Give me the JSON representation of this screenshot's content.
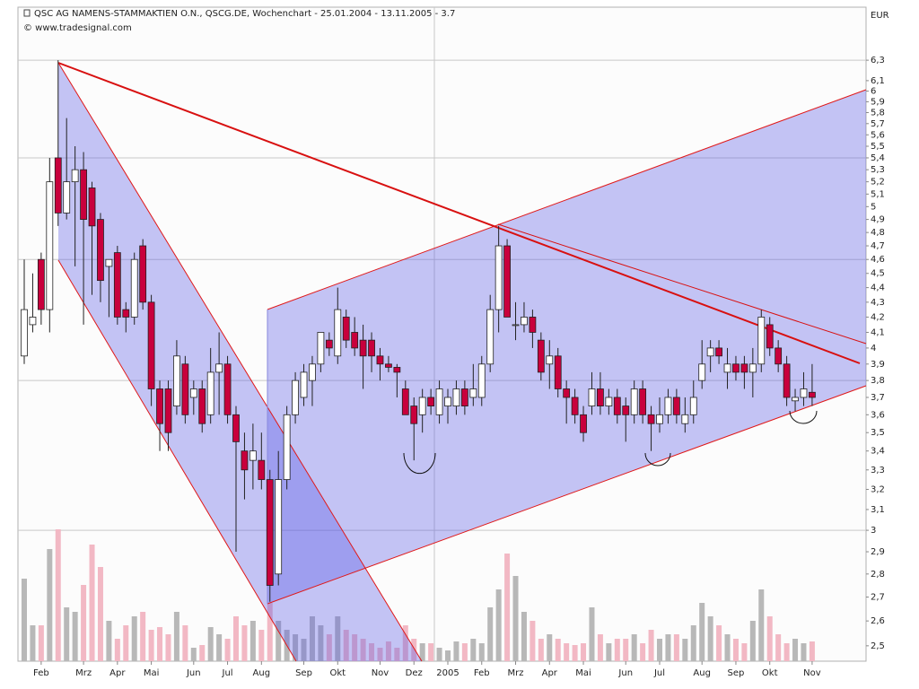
{
  "chart_data": {
    "type": "candlestick",
    "title": "QSC AG NAMENS-STAMMAKTIEN O.N., QSCG.DE, Wochenchart - 25.01.2004 - 13.11.2005 - 3.7",
    "subtitle": "© www.tradesignal.com",
    "y_label": "EUR",
    "log_scale": true,
    "ylim": [
      2.44,
      6.85
    ],
    "grid_step": 8,
    "up_color": "#ffffff",
    "down_color": "#c8003c",
    "volume_up_color": "#b8b8b8",
    "volume_down_color": "#f2b8c4",
    "yticks": [
      {
        "value": 6.3,
        "label": "6,3"
      },
      {
        "value": 6.1,
        "label": "6,1"
      },
      6,
      {
        "value": 5.9,
        "label": "5,9"
      },
      {
        "value": 5.8,
        "label": "5,8"
      },
      {
        "value": 5.7,
        "label": "5,7"
      },
      {
        "value": 5.6,
        "label": "5,6"
      },
      {
        "value": 5.5,
        "label": "5,5"
      },
      {
        "value": 5.4,
        "label": "5,4"
      },
      {
        "value": 5.3,
        "label": "5,3"
      },
      {
        "value": 5.2,
        "label": "5,2"
      },
      {
        "value": 5.1,
        "label": "5,1"
      },
      5,
      {
        "value": 4.9,
        "label": "4,9"
      },
      {
        "value": 4.8,
        "label": "4,8"
      },
      {
        "value": 4.7,
        "label": "4,7"
      },
      {
        "value": 4.6,
        "label": "4,6"
      },
      {
        "value": 4.5,
        "label": "4,5"
      },
      {
        "value": 4.4,
        "label": "4,4"
      },
      {
        "value": 4.3,
        "label": "4,3"
      },
      {
        "value": 4.2,
        "label": "4,2"
      },
      {
        "value": 4.1,
        "label": "4,1"
      },
      4,
      {
        "value": 3.9,
        "label": "3,9"
      },
      {
        "value": 3.8,
        "label": "3,8"
      },
      {
        "value": 3.7,
        "label": "3,7"
      },
      {
        "value": 3.6,
        "label": "3,6"
      },
      {
        "value": 3.5,
        "label": "3,5"
      },
      {
        "value": 3.4,
        "label": "3,4"
      },
      {
        "value": 3.3,
        "label": "3,3"
      },
      {
        "value": 3.2,
        "label": "3,2"
      },
      {
        "value": 3.1,
        "label": "3,1"
      },
      3,
      {
        "value": 2.9,
        "label": "2,9"
      },
      {
        "value": 2.8,
        "label": "2,8"
      },
      {
        "value": 2.7,
        "label": "2,7"
      },
      {
        "value": 2.6,
        "label": "2,6"
      },
      {
        "value": 2.5,
        "label": "2,5"
      }
    ],
    "categories": [
      null,
      null,
      "Feb",
      null,
      null,
      null,
      null,
      "Mrz",
      null,
      null,
      null,
      "Apr",
      null,
      null,
      null,
      "Mai",
      null,
      null,
      null,
      null,
      "Jun",
      null,
      null,
      null,
      "Jul",
      null,
      null,
      null,
      "Aug",
      null,
      null,
      null,
      null,
      "Sep",
      null,
      null,
      null,
      "Okt",
      null,
      null,
      null,
      null,
      "Nov",
      null,
      null,
      null,
      "Dez",
      null,
      null,
      null,
      "2005",
      null,
      null,
      null,
      "Feb",
      null,
      null,
      null,
      "Mrz",
      null,
      null,
      null,
      "Apr",
      null,
      null,
      null,
      "Mai",
      null,
      null,
      null,
      null,
      "Jun",
      null,
      null,
      null,
      "Jul",
      null,
      null,
      null,
      null,
      "Aug",
      null,
      null,
      null,
      "Sep",
      null,
      null,
      null,
      "Okt",
      null,
      null,
      null,
      null,
      "Nov"
    ],
    "open": [
      3.95,
      4.15,
      4.6,
      4.25,
      5.4,
      4.95,
      5.2,
      5.3,
      5.15,
      4.9,
      4.55,
      4.65,
      4.25,
      4.2,
      4.7,
      4.3,
      3.75,
      3.75,
      3.65,
      3.9,
      3.7,
      3.75,
      3.6,
      3.85,
      3.9,
      3.6,
      3.4,
      3.35,
      3.35,
      3.25,
      2.8,
      3.25,
      3.6,
      3.7,
      3.8,
      3.9,
      4.05,
      3.95,
      4.2,
      4.1,
      4.05,
      4.05,
      3.95,
      3.9,
      3.88,
      3.75,
      3.65,
      3.6,
      3.7,
      3.6,
      3.65,
      3.65,
      3.75,
      3.7,
      3.7,
      3.9,
      4.25,
      4.7,
      4.15,
      4.15,
      4.2,
      4.05,
      3.9,
      3.95,
      3.75,
      3.7,
      3.6,
      3.65,
      3.75,
      3.65,
      3.7,
      3.65,
      3.6,
      3.75,
      3.6,
      3.55,
      3.6,
      3.7,
      3.55,
      3.6,
      3.8,
      3.95,
      4.0,
      3.85,
      3.9,
      3.9,
      3.85,
      3.9,
      4.15,
      4.0,
      3.9,
      3.68,
      3.7,
      3.73
    ],
    "high": [
      4.6,
      4.5,
      4.65,
      5.4,
      6.3,
      5.75,
      5.5,
      5.45,
      5.2,
      4.95,
      4.6,
      4.7,
      4.3,
      4.65,
      4.75,
      4.35,
      3.8,
      3.8,
      4.05,
      3.95,
      3.8,
      3.8,
      4.0,
      4.1,
      3.95,
      3.65,
      3.5,
      3.55,
      3.5,
      3.3,
      3.4,
      3.65,
      3.85,
      3.9,
      3.95,
      4.1,
      4.1,
      4.4,
      4.25,
      4.2,
      4.15,
      4.1,
      4.0,
      3.95,
      3.9,
      3.8,
      3.7,
      3.75,
      3.75,
      3.8,
      3.75,
      3.8,
      3.8,
      3.9,
      3.95,
      4.35,
      4.85,
      4.75,
      4.3,
      4.3,
      4.25,
      4.1,
      4.05,
      4.0,
      3.8,
      3.75,
      3.65,
      3.85,
      3.85,
      3.75,
      3.75,
      3.7,
      3.8,
      3.8,
      3.65,
      3.7,
      3.75,
      3.75,
      3.7,
      3.8,
      4.05,
      4.05,
      4.05,
      4.0,
      3.95,
      3.95,
      4.0,
      4.25,
      4.2,
      4.05,
      3.95,
      3.75,
      3.85,
      3.9
    ],
    "low": [
      3.9,
      4.1,
      4.15,
      4.1,
      4.85,
      4.9,
      4.55,
      4.15,
      4.35,
      4.3,
      4.2,
      4.15,
      4.1,
      4.15,
      4.25,
      3.65,
      3.4,
      3.4,
      3.6,
      3.55,
      3.6,
      3.5,
      3.55,
      3.6,
      3.55,
      2.9,
      3.15,
      3.2,
      3.2,
      2.68,
      2.75,
      3.2,
      3.55,
      3.65,
      3.65,
      3.85,
      3.95,
      3.9,
      4.0,
      3.95,
      3.75,
      3.85,
      3.8,
      3.85,
      3.7,
      3.6,
      3.35,
      3.5,
      3.6,
      3.55,
      3.55,
      3.6,
      3.6,
      3.65,
      3.65,
      3.85,
      4.1,
      4.2,
      4.05,
      4.1,
      4.0,
      3.8,
      3.75,
      3.7,
      3.55,
      3.55,
      3.45,
      3.6,
      3.6,
      3.6,
      3.55,
      3.45,
      3.55,
      3.55,
      3.4,
      3.5,
      3.55,
      3.55,
      3.5,
      3.55,
      3.75,
      3.85,
      3.9,
      3.75,
      3.8,
      3.75,
      3.7,
      3.85,
      3.95,
      3.85,
      3.65,
      3.62,
      3.65,
      3.65
    ],
    "close": [
      4.25,
      4.2,
      4.25,
      5.2,
      4.95,
      5.2,
      5.3,
      4.9,
      4.85,
      4.45,
      4.6,
      4.2,
      4.2,
      4.6,
      4.3,
      3.75,
      3.55,
      3.5,
      3.95,
      3.6,
      3.75,
      3.55,
      3.85,
      3.9,
      3.6,
      3.45,
      3.3,
      3.4,
      3.25,
      2.75,
      3.25,
      3.6,
      3.8,
      3.85,
      3.9,
      4.1,
      4.0,
      4.25,
      4.05,
      4.0,
      3.95,
      3.95,
      3.9,
      3.88,
      3.85,
      3.6,
      3.55,
      3.7,
      3.65,
      3.75,
      3.7,
      3.75,
      3.65,
      3.75,
      3.9,
      4.25,
      4.7,
      4.2,
      4.15,
      4.2,
      4.1,
      3.85,
      3.95,
      3.75,
      3.7,
      3.6,
      3.5,
      3.75,
      3.65,
      3.7,
      3.6,
      3.6,
      3.75,
      3.6,
      3.55,
      3.6,
      3.7,
      3.6,
      3.6,
      3.7,
      3.9,
      4.0,
      3.95,
      3.9,
      3.85,
      3.85,
      3.9,
      4.2,
      4.0,
      3.9,
      3.7,
      3.7,
      3.75,
      3.7
    ],
    "volume": [
      92,
      40,
      40,
      125,
      147,
      60,
      55,
      85,
      130,
      105,
      45,
      25,
      40,
      50,
      55,
      35,
      38,
      30,
      55,
      40,
      15,
      18,
      38,
      30,
      25,
      50,
      40,
      45,
      35,
      65,
      45,
      35,
      30,
      25,
      50,
      40,
      30,
      50,
      35,
      30,
      25,
      20,
      15,
      22,
      15,
      40,
      25,
      20,
      20,
      15,
      12,
      22,
      20,
      25,
      20,
      60,
      80,
      120,
      95,
      55,
      45,
      25,
      30,
      25,
      20,
      18,
      20,
      60,
      30,
      20,
      25,
      25,
      30,
      20,
      35,
      25,
      30,
      30,
      25,
      40,
      65,
      50,
      40,
      30,
      25,
      20,
      45,
      80,
      50,
      30,
      20,
      25,
      20,
      22
    ]
  }
}
